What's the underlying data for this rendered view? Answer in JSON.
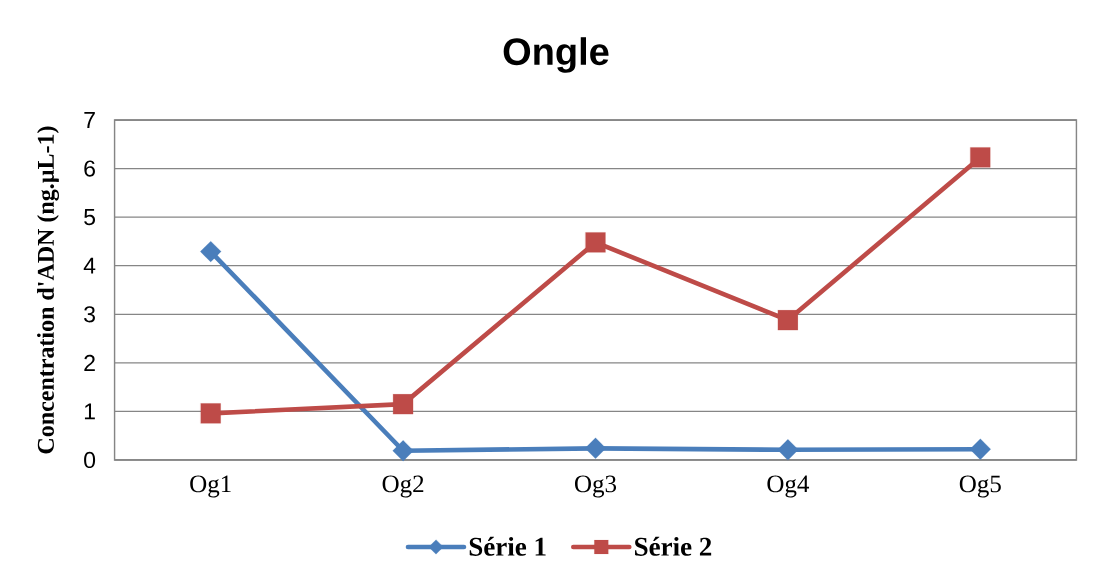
{
  "chart_data": {
    "type": "line",
    "title": "Ongle",
    "ylabel": "Concentration d'ADN (ng.µL-1)",
    "categories": [
      "Og1",
      "Og2",
      "Og3",
      "Og4",
      "Og5"
    ],
    "series": [
      {
        "name": "Série 1",
        "color": "#4a7ebb",
        "marker": "diamond",
        "values": [
          4.29,
          0.19,
          0.24,
          0.21,
          0.22
        ]
      },
      {
        "name": "Série 2",
        "color": "#be4b48",
        "marker": "square",
        "values": [
          0.96,
          1.15,
          4.48,
          2.88,
          6.23
        ]
      }
    ],
    "ylim": [
      0,
      7
    ],
    "yticks": [
      0,
      1,
      2,
      3,
      4,
      5,
      6,
      7
    ],
    "grid": "y",
    "legend": "bottom",
    "line_style": "solid"
  }
}
